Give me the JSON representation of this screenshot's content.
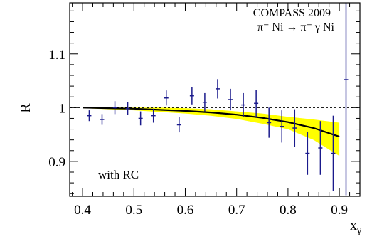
{
  "chart_data": {
    "type": "scatter",
    "title": "",
    "annotations": {
      "experiment": "COMPASS 2009",
      "reaction": "π⁻ Ni → π⁻ γ Ni",
      "note": "with RC"
    },
    "xlabel": "x",
    "xlabel_sub": "γ",
    "ylabel": "R",
    "xlim": [
      0.375,
      0.94
    ],
    "ylim": [
      0.835,
      1.195
    ],
    "xticks": [
      0.4,
      0.5,
      0.6,
      0.7,
      0.8,
      0.9
    ],
    "xtick_labels": [
      "0.4",
      "0.5",
      "0.6",
      "0.7",
      "0.8",
      "0.9"
    ],
    "yticks": [
      0.9,
      1.0,
      1.1
    ],
    "ytick_labels": [
      "0.9",
      "1",
      "1.1"
    ],
    "grid": false,
    "reference_line": {
      "y": 1.0,
      "style": "dashed"
    },
    "colors": {
      "points": "#1a1a8c",
      "band": "#ffff00",
      "curve": "#000000"
    },
    "series": [
      {
        "kind": "points",
        "x": [
          0.413,
          0.438,
          0.463,
          0.488,
          0.513,
          0.538,
          0.563,
          0.588,
          0.613,
          0.638,
          0.663,
          0.688,
          0.713,
          0.738,
          0.763,
          0.788,
          0.813,
          0.838,
          0.863,
          0.888,
          0.913
        ],
        "y": [
          0.985,
          0.978,
          1.0,
          0.998,
          0.98,
          0.985,
          1.018,
          0.968,
          1.022,
          1.01,
          1.035,
          1.015,
          1.005,
          1.008,
          0.972,
          0.965,
          0.962,
          0.915,
          0.925,
          0.915,
          1.052
        ],
        "yerr": [
          0.01,
          0.01,
          0.012,
          0.012,
          0.013,
          0.013,
          0.014,
          0.014,
          0.016,
          0.017,
          0.018,
          0.02,
          0.022,
          0.025,
          0.028,
          0.03,
          0.035,
          0.04,
          0.05,
          0.07,
          0.215
        ]
      },
      {
        "kind": "curve",
        "x": [
          0.4,
          0.45,
          0.5,
          0.55,
          0.6,
          0.65,
          0.7,
          0.75,
          0.8,
          0.85,
          0.9
        ],
        "y": [
          1.0,
          0.999,
          0.998,
          0.996,
          0.994,
          0.991,
          0.987,
          0.981,
          0.973,
          0.962,
          0.946
        ]
      },
      {
        "kind": "band",
        "x": [
          0.4,
          0.45,
          0.5,
          0.55,
          0.6,
          0.65,
          0.7,
          0.75,
          0.8,
          0.85,
          0.9
        ],
        "upper": [
          1.0,
          1.0,
          1.0,
          1.0,
          0.999,
          0.997,
          0.993,
          0.989,
          0.983,
          0.978,
          0.972
        ],
        "lower": [
          0.999,
          0.997,
          0.995,
          0.992,
          0.989,
          0.985,
          0.979,
          0.97,
          0.96,
          0.94,
          0.91
        ]
      }
    ]
  }
}
